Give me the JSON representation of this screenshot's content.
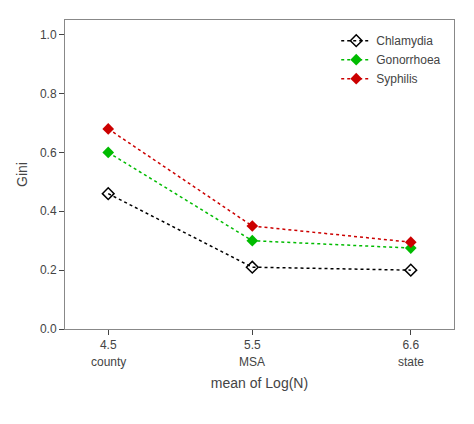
{
  "chart_data": {
    "type": "line",
    "x": [
      4.5,
      5.5,
      6.6
    ],
    "series": [
      {
        "name": "Chlamydia",
        "color": "#000000",
        "marker": "diamond-open",
        "line_style": "dotted",
        "values": [
          0.46,
          0.21,
          0.2
        ]
      },
      {
        "name": "Gonorrhoea",
        "color": "#00bb00",
        "marker": "diamond",
        "line_style": "dotted",
        "values": [
          0.6,
          0.3,
          0.275
        ]
      },
      {
        "name": "Syphilis",
        "color": "#cc0000",
        "marker": "diamond",
        "line_style": "dotted",
        "values": [
          0.68,
          0.35,
          0.295
        ]
      }
    ],
    "x_label": "mean of Log(N)",
    "y_label": "Gini",
    "xlim": [
      4.2,
      6.9
    ],
    "xticks": [
      4.5,
      5.5,
      6.6
    ],
    "ylim": [
      0.0,
      1.05
    ],
    "yticks": [
      {
        "value": 0.0,
        "label": "0.0"
      },
      0.2,
      0.4,
      0.6,
      0.8,
      {
        "value": 1.0,
        "label": "1.0"
      }
    ],
    "annotations": [
      {
        "x": 4.5,
        "text": "county"
      },
      {
        "x": 5.5,
        "text": "MSA"
      },
      {
        "x": 6.6,
        "text": "state"
      }
    ],
    "grid": false,
    "legend": "upper right"
  }
}
